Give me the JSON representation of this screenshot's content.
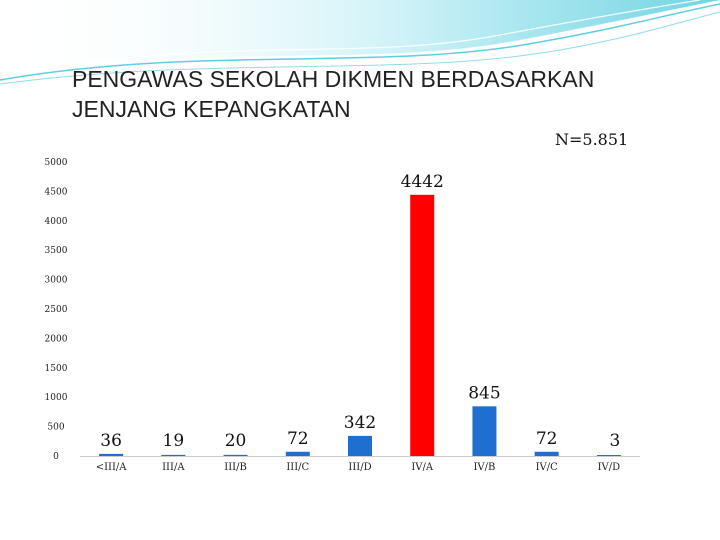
{
  "slide": {
    "title_line1": "PENGAWAS SEKOLAH DIKMEN BERDASARKAN",
    "title_line2": "JENJANG KEPANGKATAN",
    "sample_note": "N=5.851",
    "accent_color": "#42c6d9"
  },
  "chart_data": {
    "type": "bar",
    "title": "",
    "xlabel": "",
    "ylabel": "",
    "categories": [
      "<III/A",
      "III/A",
      "III/B",
      "III/C",
      "III/D",
      "IV/A",
      "IV/B",
      "IV/C",
      "IV/D"
    ],
    "values": [
      36,
      19,
      20,
      72,
      342,
      4442,
      845,
      72,
      3
    ],
    "data_labels": [
      "36",
      "19",
      "20",
      "72",
      "342",
      "4442",
      "845",
      "72",
      "3"
    ],
    "bar_colors": [
      "#1f6fd1",
      "#1f6fd1",
      "#1f6fd1",
      "#1f6fd1",
      "#1f6fd1",
      "#ff0000",
      "#1f6fd1",
      "#1f6fd1",
      "#1f6fd1"
    ],
    "ylim": [
      0,
      5000
    ],
    "yticks": [
      0,
      500,
      1000,
      1500,
      2000,
      2500,
      3000,
      3500,
      4000,
      4500,
      5000
    ],
    "grid": false,
    "legend": "none"
  }
}
